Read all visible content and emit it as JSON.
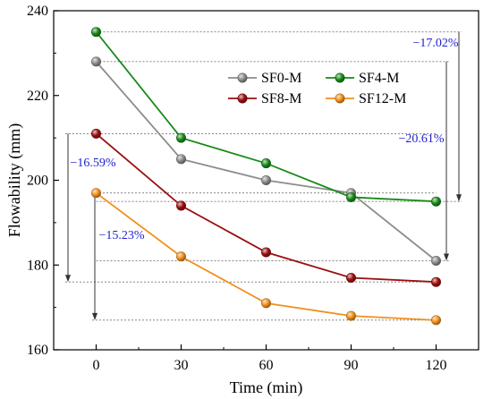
{
  "chart_data": {
    "type": "line",
    "xlabel": "Time (min)",
    "ylabel": "Flowability (mm)",
    "x": [
      0,
      30,
      60,
      90,
      120
    ],
    "xlim": [
      -15,
      135
    ],
    "ylim": [
      160,
      240
    ],
    "xticks": [
      "0",
      "30",
      "60",
      "90",
      "120"
    ],
    "yticks": [
      "160",
      "180",
      "200",
      "220",
      "240"
    ],
    "grid": false,
    "legend_position": "top-right",
    "series": [
      {
        "name": "SF0-M",
        "color": "#8c8c8c",
        "values": [
          228,
          205,
          200,
          197,
          181
        ]
      },
      {
        "name": "SF4-M",
        "color": "#1a8a1a",
        "values": [
          235,
          210,
          204,
          196,
          195
        ]
      },
      {
        "name": "SF8-M",
        "color": "#9b0f0f",
        "values": [
          211,
          194,
          183,
          177,
          176
        ]
      },
      {
        "name": "SF12-M",
        "color": "#f0901e",
        "values": [
          197,
          182,
          171,
          168,
          167
        ]
      }
    ],
    "annotations": [
      {
        "series": "SF4-M",
        "text": "−17.02%"
      },
      {
        "series": "SF0-M",
        "text": "−20.61%"
      },
      {
        "series": "SF8-M",
        "text": "−16.59%"
      },
      {
        "series": "SF12-M",
        "text": "−15.23%"
      }
    ],
    "annotation_color": "#1f1fd0"
  }
}
